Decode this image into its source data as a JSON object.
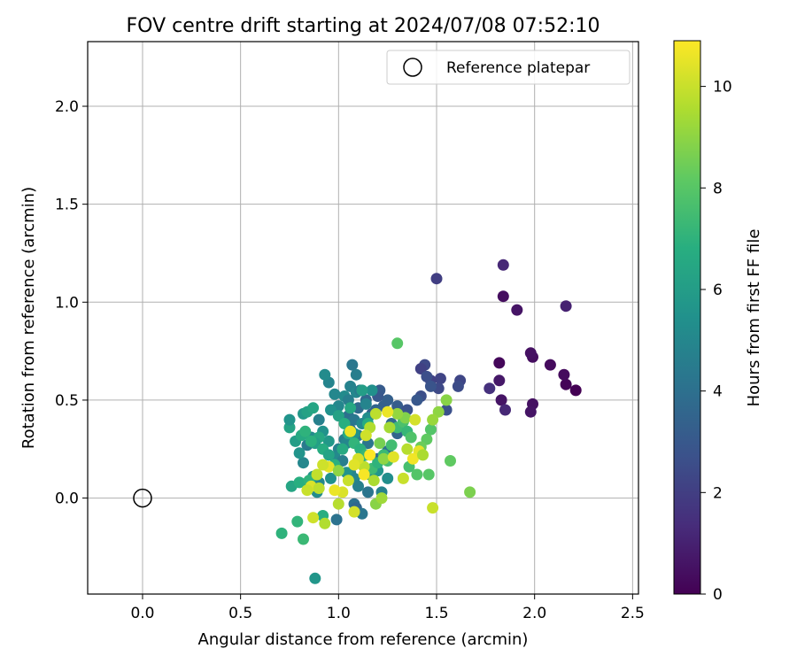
{
  "chart_data": {
    "type": "scatter",
    "title": "FOV centre drift starting at 2024/07/08 07:52:10",
    "xlabel": "Angular distance from reference (arcmin)",
    "ylabel": "Rotation from reference (arcmin)",
    "xlim": [
      -0.28,
      2.53
    ],
    "ylim": [
      -0.49,
      2.33
    ],
    "xticks": [
      "0.0",
      "0.5",
      "1.0",
      "1.5",
      "2.0",
      "2.5"
    ],
    "yticks": [
      "0.0",
      "0.5",
      "1.0",
      "1.5",
      "2.0"
    ],
    "grid": true,
    "legend": {
      "placement": "top-right",
      "entries": [
        "Reference platepar"
      ]
    },
    "reference_point": {
      "x": 0.0,
      "y": 0.0,
      "marker": "hollow-circle"
    },
    "colorbar": {
      "label": "Hours from first FF file",
      "colormap": "viridis",
      "range": [
        0,
        10.9
      ],
      "ticks": [
        "0",
        "2",
        "4",
        "6",
        "8",
        "10"
      ]
    },
    "series": [
      {
        "points": [
          [
            2.21,
            0.55,
            0.0
          ],
          [
            2.16,
            0.58,
            0.1
          ],
          [
            2.15,
            0.63,
            0.3
          ],
          [
            2.08,
            0.68,
            0.3
          ],
          [
            1.99,
            0.48,
            0.5
          ],
          [
            1.98,
            0.44,
            0.6
          ],
          [
            1.99,
            0.72,
            0.4
          ],
          [
            1.98,
            0.74,
            0.5
          ],
          [
            1.91,
            0.96,
            0.6
          ],
          [
            2.16,
            0.98,
            1.0
          ],
          [
            1.84,
            1.19,
            1.2
          ],
          [
            1.84,
            1.03,
            0.4
          ],
          [
            1.82,
            0.69,
            0.2
          ],
          [
            1.82,
            0.6,
            0.7
          ],
          [
            1.83,
            0.5,
            0.6
          ],
          [
            1.85,
            0.45,
            1.2
          ],
          [
            1.77,
            0.56,
            1.5
          ],
          [
            1.62,
            0.6,
            2.3
          ],
          [
            1.61,
            0.57,
            2.5
          ],
          [
            1.55,
            0.45,
            2.7
          ],
          [
            1.5,
            1.12,
            2.0
          ],
          [
            1.52,
            0.61,
            2.2
          ],
          [
            1.51,
            0.56,
            2.4
          ],
          [
            1.47,
            0.6,
            2.1
          ],
          [
            1.44,
            0.68,
            2.4
          ],
          [
            1.42,
            0.66,
            2.1
          ],
          [
            1.45,
            0.62,
            2.6
          ],
          [
            1.47,
            0.57,
            2.8
          ],
          [
            1.42,
            0.52,
            2.6
          ],
          [
            1.4,
            0.5,
            3.0
          ],
          [
            1.3,
            0.47,
            3.2
          ],
          [
            1.25,
            0.5,
            3.3
          ],
          [
            1.21,
            0.55,
            3.1
          ],
          [
            1.23,
            0.47,
            3.3
          ],
          [
            1.19,
            0.45,
            3.5
          ],
          [
            1.14,
            0.5,
            3.6
          ],
          [
            1.17,
            0.43,
            3.4
          ],
          [
            1.1,
            0.46,
            3.8
          ],
          [
            1.05,
            0.42,
            4.0
          ],
          [
            1.2,
            0.52,
            3.0
          ],
          [
            1.35,
            0.45,
            2.8
          ],
          [
            1.27,
            0.38,
            3.7
          ],
          [
            1.3,
            0.33,
            3.5
          ],
          [
            1.25,
            0.24,
            4.0
          ],
          [
            1.2,
            0.2,
            3.6
          ],
          [
            1.15,
            0.28,
            4.2
          ],
          [
            1.1,
            0.32,
            4.4
          ],
          [
            1.08,
            0.4,
            4.3
          ],
          [
            1.06,
            0.35,
            3.9
          ],
          [
            1.03,
            0.3,
            4.6
          ],
          [
            1.07,
            0.68,
            4.3
          ],
          [
            1.09,
            0.63,
            4.6
          ],
          [
            1.06,
            0.57,
            4.8
          ],
          [
            1.09,
            0.54,
            5.0
          ],
          [
            1.11,
            0.55,
            4.5
          ],
          [
            1.03,
            0.52,
            5.2
          ],
          [
            1.0,
            0.47,
            5.0
          ],
          [
            1.05,
            0.5,
            4.6
          ],
          [
            1.14,
            0.48,
            4.9
          ],
          [
            1.17,
            0.55,
            5.4
          ],
          [
            1.15,
            0.41,
            5.3
          ],
          [
            1.12,
            0.38,
            5.1
          ],
          [
            1.08,
            0.33,
            5.5
          ],
          [
            1.04,
            0.28,
            5.0
          ],
          [
            1.0,
            0.25,
            4.8
          ],
          [
            0.95,
            0.59,
            4.9
          ],
          [
            0.93,
            0.63,
            5.2
          ],
          [
            0.98,
            0.53,
            5.0
          ],
          [
            0.96,
            0.45,
            5.5
          ],
          [
            0.9,
            0.4,
            4.7
          ],
          [
            0.84,
            0.27,
            4.5
          ],
          [
            0.86,
            0.31,
            5.2
          ],
          [
            0.92,
            0.34,
            5.5
          ],
          [
            0.95,
            0.29,
            5.8
          ],
          [
            0.98,
            0.21,
            5.1
          ],
          [
            1.02,
            0.19,
            4.6
          ],
          [
            1.06,
            0.13,
            4.9
          ],
          [
            1.08,
            0.1,
            5.0
          ],
          [
            1.1,
            0.06,
            4.7
          ],
          [
            1.15,
            0.03,
            4.2
          ],
          [
            1.08,
            -0.03,
            4.0
          ],
          [
            1.09,
            -0.05,
            3.6
          ],
          [
            0.99,
            -0.11,
            4.1
          ],
          [
            1.12,
            -0.08,
            4.3
          ],
          [
            1.22,
            0.03,
            4.8
          ],
          [
            1.25,
            0.1,
            5.3
          ],
          [
            1.2,
            0.14,
            5.7
          ],
          [
            1.16,
            0.12,
            5.4
          ],
          [
            1.11,
            0.2,
            5.9
          ],
          [
            1.04,
            0.13,
            5.6
          ],
          [
            0.96,
            0.1,
            5.4
          ],
          [
            0.9,
            0.08,
            5.0
          ],
          [
            0.87,
            0.11,
            5.7
          ],
          [
            0.89,
            0.03,
            5.2
          ],
          [
            0.85,
            0.07,
            6.2
          ],
          [
            0.82,
            0.18,
            5.0
          ],
          [
            0.8,
            0.23,
            5.6
          ],
          [
            0.78,
            0.29,
            6.0
          ],
          [
            0.75,
            0.36,
            6.3
          ],
          [
            0.75,
            0.4,
            5.6
          ],
          [
            0.82,
            0.43,
            5.8
          ],
          [
            0.84,
            0.44,
            6.2
          ],
          [
            0.87,
            0.46,
            6.4
          ],
          [
            0.9,
            0.31,
            6.5
          ],
          [
            0.88,
            0.28,
            6.1
          ],
          [
            0.81,
            0.32,
            6.6
          ],
          [
            0.83,
            0.34,
            7.0
          ],
          [
            0.86,
            0.29,
            6.9
          ],
          [
            0.92,
            0.25,
            6.7
          ],
          [
            0.95,
            0.22,
            6.3
          ],
          [
            0.98,
            0.17,
            6.9
          ],
          [
            1.02,
            0.25,
            6.6
          ],
          [
            1.0,
            0.42,
            6.2
          ],
          [
            1.03,
            0.38,
            6.8
          ],
          [
            1.05,
            0.33,
            6.6
          ],
          [
            1.08,
            0.28,
            7.1
          ],
          [
            1.11,
            0.25,
            6.9
          ],
          [
            1.14,
            0.22,
            7.2
          ],
          [
            1.17,
            0.15,
            7.4
          ],
          [
            1.2,
            0.18,
            7.0
          ],
          [
            1.23,
            0.22,
            7.3
          ],
          [
            1.25,
            0.19,
            7.6
          ],
          [
            1.27,
            0.27,
            7.5
          ],
          [
            1.3,
            0.36,
            7.4
          ],
          [
            1.33,
            0.39,
            7.7
          ],
          [
            1.35,
            0.34,
            7.2
          ],
          [
            1.37,
            0.31,
            7.8
          ],
          [
            1.36,
            0.16,
            7.6
          ],
          [
            1.4,
            0.12,
            7.9
          ],
          [
            1.46,
            0.12,
            8.0
          ],
          [
            1.47,
            0.35,
            7.9
          ],
          [
            1.45,
            0.3,
            8.2
          ],
          [
            1.42,
            0.26,
            8.4
          ],
          [
            1.12,
            0.55,
            6.0
          ],
          [
            1.06,
            0.46,
            6.5
          ],
          [
            1.15,
            0.38,
            6.7
          ],
          [
            0.76,
            0.06,
            6.4
          ],
          [
            0.8,
            0.08,
            6.8
          ],
          [
            0.85,
            0.09,
            7.0
          ],
          [
            0.92,
            -0.09,
            6.8
          ],
          [
            0.88,
            -0.41,
            5.7
          ],
          [
            0.71,
            -0.18,
            7.0
          ],
          [
            0.79,
            -0.12,
            7.1
          ],
          [
            0.82,
            -0.21,
            7.3
          ],
          [
            1.3,
            0.79,
            8.0
          ],
          [
            1.57,
            0.19,
            8.2
          ],
          [
            1.67,
            0.03,
            8.7
          ],
          [
            1.55,
            0.5,
            8.9
          ],
          [
            1.51,
            0.44,
            9.0
          ],
          [
            1.48,
            0.4,
            9.2
          ],
          [
            1.34,
            0.41,
            8.8
          ],
          [
            1.3,
            0.43,
            9.1
          ],
          [
            1.26,
            0.36,
            9.4
          ],
          [
            1.23,
            0.2,
            9.0
          ],
          [
            1.21,
            0.28,
            8.6
          ],
          [
            1.19,
            -0.03,
            8.9
          ],
          [
            1.22,
            0.0,
            9.3
          ],
          [
            1.18,
            0.09,
            9.5
          ],
          [
            1.13,
            0.16,
            9.8
          ],
          [
            1.16,
            0.36,
            9.6
          ],
          [
            1.19,
            0.43,
            9.8
          ],
          [
            1.14,
            0.32,
            10.1
          ],
          [
            1.1,
            0.2,
            10.2
          ],
          [
            1.08,
            0.17,
            10.4
          ],
          [
            1.05,
            0.09,
            10.0
          ],
          [
            1.02,
            0.03,
            10.3
          ],
          [
            0.98,
            0.04,
            10.6
          ],
          [
            0.95,
            0.16,
            10.5
          ],
          [
            0.92,
            0.17,
            10.1
          ],
          [
            0.89,
            0.12,
            9.9
          ],
          [
            0.86,
            0.06,
            10.3
          ],
          [
            0.84,
            0.04,
            10.0
          ],
          [
            0.93,
            -0.13,
            9.6
          ],
          [
            0.87,
            -0.1,
            10.1
          ],
          [
            1.0,
            -0.03,
            9.7
          ],
          [
            1.08,
            -0.07,
            10.2
          ],
          [
            1.06,
            0.34,
            10.6
          ],
          [
            1.13,
            0.12,
            10.8
          ],
          [
            1.16,
            0.22,
            10.9
          ],
          [
            1.28,
            0.21,
            10.4
          ],
          [
            1.33,
            0.1,
            10.0
          ],
          [
            1.35,
            0.25,
            9.7
          ],
          [
            1.39,
            0.4,
            10.2
          ],
          [
            1.41,
            0.24,
            10.5
          ],
          [
            1.38,
            0.2,
            10.7
          ],
          [
            1.43,
            0.22,
            9.5
          ],
          [
            1.48,
            -0.05,
            10.0
          ],
          [
            1.25,
            0.44,
            10.6
          ],
          [
            1.0,
            0.14,
            9.0
          ],
          [
            0.9,
            0.05,
            9.8
          ]
        ]
      }
    ]
  }
}
